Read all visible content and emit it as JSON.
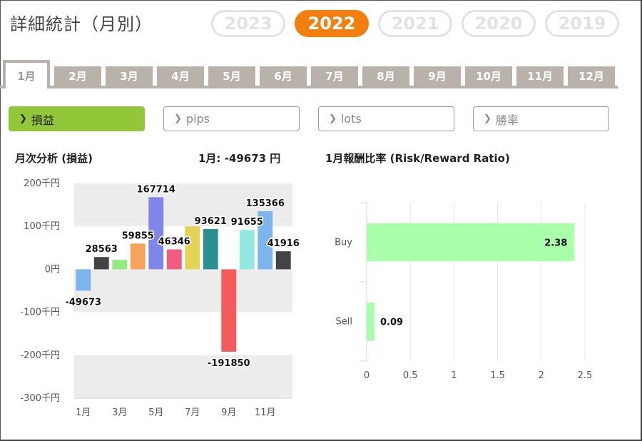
{
  "header": {
    "title": "詳細統計（月別）",
    "years": [
      {
        "label": "2023",
        "active": false
      },
      {
        "label": "2022",
        "active": true
      },
      {
        "label": "2021",
        "active": false
      },
      {
        "label": "2020",
        "active": false
      },
      {
        "label": "2019",
        "active": false
      }
    ]
  },
  "months": [
    "1月",
    "2月",
    "3月",
    "4月",
    "5月",
    "6月",
    "7月",
    "8月",
    "9月",
    "10月",
    "11月",
    "12月"
  ],
  "metrics": [
    {
      "label": "損益",
      "active": true
    },
    {
      "label": "pips",
      "active": false
    },
    {
      "label": "lots",
      "active": false
    },
    {
      "label": "勝率",
      "active": false
    }
  ],
  "left_panel": {
    "title": "月次分析 (損益)",
    "summary": "1月:  -49673 円"
  },
  "right_panel": {
    "title": "1月報酬比率 (Risk/Reward Ratio)"
  },
  "chart_data": [
    {
      "type": "bar",
      "categories": [
        "1月",
        "2月",
        "3月",
        "4月",
        "5月",
        "6月",
        "7月",
        "8月",
        "9月",
        "10月",
        "11月",
        "12月"
      ],
      "values": [
        -49673,
        28563,
        22000,
        59855,
        167714,
        46346,
        100000,
        93621,
        -191850,
        91655,
        135366,
        41916
      ],
      "data_labels": [
        "-49673",
        "28563",
        "",
        "59855",
        "167714",
        "46346",
        "",
        "93621",
        "-191850",
        "91655",
        "135366",
        "41916"
      ],
      "colors": [
        "#7cb5ec",
        "#434348",
        "#90ed7d",
        "#f7a35c",
        "#8085e9",
        "#f15c80",
        "#e4d354",
        "#2b908f",
        "#f45b5b",
        "#91e8e1",
        "#7cb5ec",
        "#434348"
      ],
      "ylim": [
        -300000,
        200000
      ],
      "y_ticks": [
        200000,
        100000,
        0,
        -100000,
        -200000,
        -300000
      ],
      "y_tick_labels": [
        "200千円",
        "100千円",
        "0円",
        "-100千円",
        "-200千円",
        "-300千円"
      ],
      "x_tick_labels": [
        "1月",
        "",
        "3月",
        "",
        "5月",
        "",
        "7月",
        "",
        "9月",
        "",
        "11月",
        ""
      ],
      "grid": "alternating bands"
    },
    {
      "type": "bar",
      "orientation": "horizontal",
      "categories": [
        "Buy",
        "Sell"
      ],
      "values": [
        2.38,
        0.09
      ],
      "data_labels": [
        "2.38",
        "0.09"
      ],
      "color": "#aaffaa",
      "xlim": [
        0,
        2.5
      ],
      "x_ticks": [
        0,
        0.5,
        1,
        1.5,
        2,
        2.5
      ],
      "x_tick_labels": [
        "0",
        "0.5",
        "1",
        "1.5",
        "2",
        "2.5"
      ],
      "grid": "vertical lines"
    }
  ]
}
